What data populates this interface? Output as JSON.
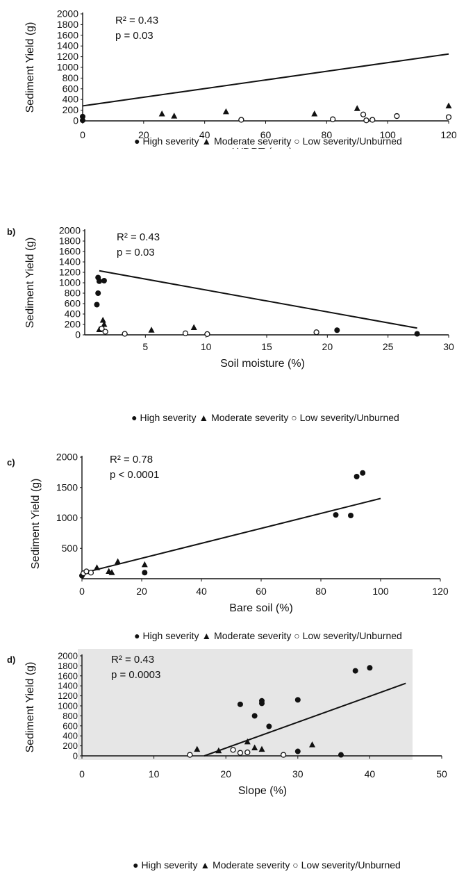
{
  "charts": [
    {
      "panel_label": "",
      "chart_data": {
        "type": "scatter",
        "title": "",
        "xlabel": "WDPT (sec)",
        "ylabel": "Sediment Yield (g)",
        "xlim": [
          0,
          120
        ],
        "ylim": [
          0,
          2000
        ],
        "xticks": [
          0,
          20,
          40,
          60,
          80,
          100,
          120
        ],
        "yticks": [
          0,
          200,
          400,
          600,
          800,
          1000,
          1200,
          1400,
          1600,
          1800,
          2000
        ],
        "stats": [
          "R² = 0.43",
          "p = 0.03"
        ],
        "legend": [
          "High severity",
          "Moderate severity",
          "Low severity/Unburned"
        ],
        "series": [
          {
            "name": "High severity",
            "marker": "circle-filled",
            "points": [
              [
                0,
                80
              ],
              [
                0,
                10
              ]
            ]
          },
          {
            "name": "Moderate severity",
            "marker": "triangle-filled",
            "points": [
              [
                26,
                130
              ],
              [
                30,
                90
              ],
              [
                47,
                170
              ],
              [
                76,
                130
              ],
              [
                90,
                230
              ],
              [
                120,
                280
              ]
            ]
          },
          {
            "name": "Low severity/Unburned",
            "marker": "circle-open",
            "points": [
              [
                52,
                20
              ],
              [
                82,
                30
              ],
              [
                92,
                120
              ],
              [
                93,
                10
              ],
              [
                95,
                20
              ],
              [
                103,
                90
              ],
              [
                120,
                70
              ]
            ]
          }
        ],
        "fit": {
          "x": [
            0,
            120
          ],
          "y": [
            280,
            1250
          ]
        }
      }
    },
    {
      "panel_label": "b)",
      "chart_data": {
        "type": "scatter",
        "title": "",
        "xlabel": "Soil moisture (%)",
        "ylabel": "Sediment Yield (g)",
        "xlim": [
          0,
          30
        ],
        "ylim": [
          0,
          2000
        ],
        "xticks": [
          5,
          10,
          15,
          20,
          25,
          30
        ],
        "yticks": [
          0,
          200,
          400,
          600,
          800,
          1000,
          1200,
          1400,
          1600,
          1800,
          2000
        ],
        "stats": [
          "R² = 0.43",
          "p = 0.03"
        ],
        "legend": [
          "High severity",
          "Moderate severity",
          "Low severity/Unburned"
        ],
        "series": [
          {
            "name": "High severity",
            "marker": "circle-filled",
            "points": [
              [
                1.1,
                1100
              ],
              [
                1.2,
                1030
              ],
              [
                1.6,
                1040
              ],
              [
                1.1,
                800
              ],
              [
                1.0,
                580
              ],
              [
                20.8,
                90
              ],
              [
                27.4,
                20
              ]
            ]
          },
          {
            "name": "Moderate severity",
            "marker": "triangle-filled",
            "points": [
              [
                1.5,
                280
              ],
              [
                1.6,
                200
              ],
              [
                1.2,
                100
              ],
              [
                5.5,
                90
              ],
              [
                9.0,
                140
              ]
            ]
          },
          {
            "name": "Low severity/Unburned",
            "marker": "circle-open",
            "points": [
              [
                1.4,
                120
              ],
              [
                1.7,
                60
              ],
              [
                3.3,
                20
              ],
              [
                8.3,
                30
              ],
              [
                10.1,
                15
              ],
              [
                19.1,
                50
              ]
            ]
          }
        ],
        "fit": {
          "x": [
            1.2,
            27.4
          ],
          "y": [
            1230,
            130
          ]
        }
      }
    },
    {
      "panel_label": "c)",
      "chart_data": {
        "type": "scatter",
        "title": "",
        "xlabel": "Bare soil (%)",
        "ylabel": "Sediment Yield (g)",
        "xlim": [
          0,
          120
        ],
        "ylim": [
          0,
          2000
        ],
        "xticks": [
          0,
          20,
          40,
          60,
          80,
          100,
          120
        ],
        "yticks": [
          500,
          1000,
          1500,
          2000
        ],
        "stats": [
          "R² = 0.78",
          "p < 0.0001"
        ],
        "legend": [
          "High severity",
          "Moderate severity",
          "Low severity/Unburned"
        ],
        "series": [
          {
            "name": "High severity",
            "marker": "circle-filled",
            "points": [
              [
                0,
                50
              ],
              [
                21,
                100
              ],
              [
                85,
                1050
              ],
              [
                90,
                1040
              ],
              [
                92,
                1680
              ],
              [
                94,
                1740
              ]
            ]
          },
          {
            "name": "Moderate severity",
            "marker": "triangle-filled",
            "points": [
              [
                5,
                180
              ],
              [
                9,
                120
              ],
              [
                10,
                100
              ],
              [
                12,
                280
              ],
              [
                21,
                230
              ]
            ]
          },
          {
            "name": "Low severity/Unburned",
            "marker": "circle-open",
            "points": [
              [
                0.5,
                90
              ],
              [
                1.5,
                120
              ],
              [
                3,
                100
              ]
            ]
          }
        ],
        "fit": {
          "x": [
            0,
            100
          ],
          "y": [
            90,
            1320
          ]
        }
      }
    },
    {
      "panel_label": "d)",
      "chart_data": {
        "type": "scatter",
        "title": "",
        "xlabel": "Slope (%)",
        "ylabel": "Sediment Yield (g)",
        "xlim": [
          0,
          50
        ],
        "ylim": [
          0,
          2000
        ],
        "xticks": [
          0,
          10,
          20,
          30,
          40,
          50
        ],
        "yticks": [
          0,
          200,
          400,
          600,
          800,
          1000,
          1200,
          1400,
          1600,
          1800,
          2000
        ],
        "stats": [
          "R² = 0.43",
          "p = 0.0003"
        ],
        "legend": [
          "High severity",
          "Moderate severity",
          "Low severity/Unburned"
        ],
        "series": [
          {
            "name": "High severity",
            "marker": "circle-filled",
            "points": [
              [
                22,
                1030
              ],
              [
                25,
                1100
              ],
              [
                25,
                1050
              ],
              [
                30,
                1120
              ],
              [
                24,
                800
              ],
              [
                26,
                590
              ],
              [
                30,
                90
              ],
              [
                36,
                20
              ],
              [
                38,
                1700
              ],
              [
                40,
                1760
              ]
            ]
          },
          {
            "name": "Moderate severity",
            "marker": "triangle-filled",
            "points": [
              [
                16,
                130
              ],
              [
                19,
                100
              ],
              [
                23,
                280
              ],
              [
                24,
                160
              ],
              [
                25,
                130
              ],
              [
                32,
                220
              ]
            ]
          },
          {
            "name": "Low severity/Unburned",
            "marker": "circle-open",
            "points": [
              [
                15,
                20
              ],
              [
                21,
                120
              ],
              [
                22,
                60
              ],
              [
                23,
                70
              ],
              [
                28,
                20
              ]
            ]
          }
        ],
        "fit": {
          "x": [
            17,
            45
          ],
          "y": [
            0,
            1450
          ]
        }
      }
    }
  ]
}
